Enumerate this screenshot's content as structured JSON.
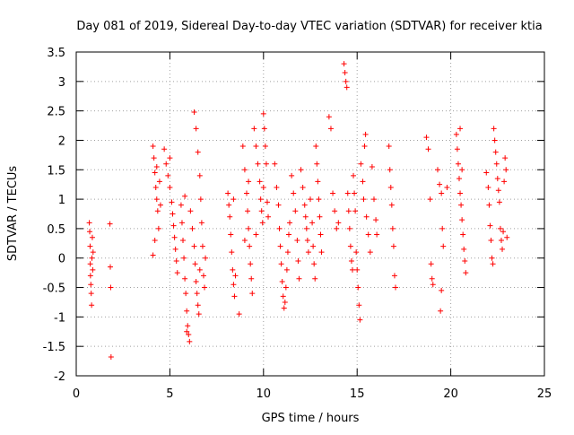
{
  "chart_data": {
    "type": "scatter",
    "title": "Day 081 of 2019, Sidereal Day-to-day VTEC variation (SDTVAR) for receiver ktia",
    "xlabel": "GPS time / hours",
    "ylabel": "SDTVAR / TECUs",
    "xlim": [
      0,
      25
    ],
    "ylim": [
      -2,
      3.5
    ],
    "xticks": [
      0,
      5,
      10,
      15,
      20,
      25
    ],
    "yticks": [
      -2,
      -1.5,
      -1,
      -0.5,
      0,
      0.5,
      1,
      1.5,
      2,
      2.5,
      3,
      3.5
    ],
    "grid": true,
    "marker": "plus",
    "color": "#ff0000",
    "series": [
      {
        "name": "SDTVAR",
        "points": [
          [
            0.7,
            0.6
          ],
          [
            0.72,
            0.45
          ],
          [
            0.74,
            0.2
          ],
          [
            0.75,
            -0.1
          ],
          [
            0.76,
            -0.3
          ],
          [
            0.78,
            -0.45
          ],
          [
            0.8,
            -0.6
          ],
          [
            0.82,
            -0.8
          ],
          [
            0.84,
            0.0
          ],
          [
            0.86,
            0.35
          ],
          [
            0.88,
            -0.2
          ],
          [
            0.9,
            0.1
          ],
          [
            1.8,
            0.58
          ],
          [
            1.82,
            -0.15
          ],
          [
            1.84,
            -0.5
          ],
          [
            1.86,
            -1.68
          ],
          [
            4.1,
            1.9
          ],
          [
            4.15,
            1.7
          ],
          [
            4.2,
            1.45
          ],
          [
            4.25,
            1.2
          ],
          [
            4.3,
            1.0
          ],
          [
            4.35,
            0.8
          ],
          [
            4.4,
            0.5
          ],
          [
            4.2,
            0.3
          ],
          [
            4.1,
            0.05
          ],
          [
            4.3,
            1.55
          ],
          [
            4.45,
            1.3
          ],
          [
            4.5,
            0.9
          ],
          [
            4.7,
            1.85
          ],
          [
            4.8,
            1.6
          ],
          [
            4.9,
            1.4
          ],
          [
            5.0,
            1.2
          ],
          [
            5.1,
            0.95
          ],
          [
            5.15,
            0.75
          ],
          [
            5.2,
            0.55
          ],
          [
            5.25,
            0.35
          ],
          [
            5.3,
            0.15
          ],
          [
            5.35,
            -0.05
          ],
          [
            5.4,
            -0.25
          ],
          [
            5.0,
            1.7
          ],
          [
            5.6,
            0.9
          ],
          [
            5.65,
            0.6
          ],
          [
            5.7,
            0.3
          ],
          [
            5.75,
            0.0
          ],
          [
            5.8,
            -0.35
          ],
          [
            5.85,
            -0.6
          ],
          [
            5.9,
            -0.9
          ],
          [
            5.95,
            -1.15
          ],
          [
            6.0,
            -1.3
          ],
          [
            6.05,
            -1.42
          ],
          [
            5.9,
            -1.25
          ],
          [
            5.8,
            1.05
          ],
          [
            6.1,
            0.8
          ],
          [
            6.2,
            0.5
          ],
          [
            6.3,
            0.2
          ],
          [
            6.35,
            -0.1
          ],
          [
            6.4,
            -0.4
          ],
          [
            6.45,
            -0.6
          ],
          [
            6.5,
            -0.8
          ],
          [
            6.55,
            -0.95
          ],
          [
            6.3,
            2.48
          ],
          [
            6.4,
            2.2
          ],
          [
            6.5,
            1.8
          ],
          [
            6.6,
            1.4
          ],
          [
            6.65,
            1.0
          ],
          [
            6.7,
            0.6
          ],
          [
            6.75,
            0.2
          ],
          [
            6.8,
            -0.3
          ],
          [
            6.85,
            -0.5
          ],
          [
            6.6,
            -0.2
          ],
          [
            6.9,
            0.0
          ],
          [
            8.1,
            1.1
          ],
          [
            8.15,
            0.9
          ],
          [
            8.2,
            0.7
          ],
          [
            8.25,
            0.4
          ],
          [
            8.3,
            0.1
          ],
          [
            8.35,
            -0.2
          ],
          [
            8.4,
            -0.45
          ],
          [
            8.45,
            -0.65
          ],
          [
            8.5,
            -0.3
          ],
          [
            8.4,
            1.0
          ],
          [
            8.7,
            -0.95
          ],
          [
            8.9,
            1.9
          ],
          [
            9.0,
            1.5
          ],
          [
            9.1,
            1.1
          ],
          [
            9.15,
            0.8
          ],
          [
            9.2,
            0.5
          ],
          [
            9.25,
            0.2
          ],
          [
            9.3,
            -0.1
          ],
          [
            9.35,
            -0.35
          ],
          [
            9.4,
            -0.6
          ],
          [
            9.2,
            1.3
          ],
          [
            9.0,
            0.3
          ],
          [
            9.5,
            2.2
          ],
          [
            9.6,
            1.9
          ],
          [
            9.7,
            1.6
          ],
          [
            9.8,
            1.3
          ],
          [
            9.85,
            1.0
          ],
          [
            9.9,
            0.8
          ],
          [
            9.95,
            0.6
          ],
          [
            10.0,
            2.45
          ],
          [
            10.05,
            2.2
          ],
          [
            10.1,
            1.9
          ],
          [
            10.15,
            1.6
          ],
          [
            10.2,
            0.95
          ],
          [
            10.25,
            0.7
          ],
          [
            9.6,
            0.4
          ],
          [
            10.0,
            1.2
          ],
          [
            10.6,
            1.6
          ],
          [
            10.7,
            1.2
          ],
          [
            10.8,
            0.9
          ],
          [
            10.85,
            0.5
          ],
          [
            10.9,
            0.2
          ],
          [
            10.95,
            -0.1
          ],
          [
            11.0,
            -0.4
          ],
          [
            11.05,
            -0.65
          ],
          [
            11.1,
            -0.85
          ],
          [
            11.15,
            -0.75
          ],
          [
            11.2,
            -0.5
          ],
          [
            11.25,
            -0.2
          ],
          [
            11.3,
            0.1
          ],
          [
            11.35,
            0.4
          ],
          [
            11.4,
            0.6
          ],
          [
            11.5,
            1.4
          ],
          [
            11.6,
            1.1
          ],
          [
            11.7,
            0.8
          ],
          [
            11.8,
            0.3
          ],
          [
            11.85,
            -0.05
          ],
          [
            11.9,
            -0.35
          ],
          [
            12.0,
            1.5
          ],
          [
            12.1,
            1.2
          ],
          [
            12.2,
            0.9
          ],
          [
            12.25,
            0.7
          ],
          [
            12.3,
            0.5
          ],
          [
            12.35,
            0.3
          ],
          [
            12.4,
            0.1
          ],
          [
            12.5,
            1.0
          ],
          [
            12.6,
            0.6
          ],
          [
            12.65,
            0.2
          ],
          [
            12.7,
            -0.1
          ],
          [
            12.75,
            -0.35
          ],
          [
            12.8,
            1.9
          ],
          [
            12.85,
            1.6
          ],
          [
            12.9,
            1.3
          ],
          [
            12.95,
            1.0
          ],
          [
            13.0,
            0.7
          ],
          [
            13.05,
            0.4
          ],
          [
            13.1,
            0.1
          ],
          [
            13.5,
            2.4
          ],
          [
            13.6,
            2.2
          ],
          [
            13.7,
            1.1
          ],
          [
            13.8,
            0.8
          ],
          [
            13.9,
            0.5
          ],
          [
            14.0,
            0.6
          ],
          [
            14.3,
            3.3
          ],
          [
            14.35,
            3.15
          ],
          [
            14.4,
            3.0
          ],
          [
            14.45,
            2.9
          ],
          [
            14.5,
            1.1
          ],
          [
            14.55,
            0.8
          ],
          [
            14.6,
            0.5
          ],
          [
            14.65,
            0.2
          ],
          [
            14.7,
            -0.05
          ],
          [
            14.75,
            -0.2
          ],
          [
            14.8,
            1.4
          ],
          [
            14.85,
            1.1
          ],
          [
            14.9,
            0.8
          ],
          [
            14.95,
            0.1
          ],
          [
            15.0,
            -0.2
          ],
          [
            15.05,
            -0.5
          ],
          [
            15.1,
            -0.8
          ],
          [
            15.15,
            -1.05
          ],
          [
            15.2,
            1.6
          ],
          [
            15.3,
            1.3
          ],
          [
            15.35,
            1.0
          ],
          [
            15.4,
            1.9
          ],
          [
            15.45,
            2.1
          ],
          [
            15.5,
            0.7
          ],
          [
            15.6,
            0.4
          ],
          [
            15.7,
            0.1
          ],
          [
            15.8,
            1.55
          ],
          [
            15.9,
            1.0
          ],
          [
            16.0,
            0.65
          ],
          [
            16.05,
            0.4
          ],
          [
            16.7,
            1.9
          ],
          [
            16.75,
            1.5
          ],
          [
            16.8,
            1.2
          ],
          [
            16.85,
            0.9
          ],
          [
            16.9,
            0.5
          ],
          [
            16.95,
            0.2
          ],
          [
            17.0,
            -0.3
          ],
          [
            17.05,
            -0.5
          ],
          [
            18.7,
            2.05
          ],
          [
            18.8,
            1.85
          ],
          [
            18.9,
            1.0
          ],
          [
            18.95,
            -0.1
          ],
          [
            19.0,
            -0.35
          ],
          [
            19.05,
            -0.45
          ],
          [
            19.3,
            1.5
          ],
          [
            19.4,
            1.25
          ],
          [
            19.5,
            1.1
          ],
          [
            19.55,
            0.5
          ],
          [
            19.6,
            0.2
          ],
          [
            19.5,
            -0.55
          ],
          [
            19.45,
            -0.9
          ],
          [
            19.8,
            1.2
          ],
          [
            20.3,
            2.1
          ],
          [
            20.35,
            1.85
          ],
          [
            20.4,
            1.6
          ],
          [
            20.45,
            1.35
          ],
          [
            20.5,
            1.1
          ],
          [
            20.55,
            0.9
          ],
          [
            20.6,
            0.65
          ],
          [
            20.65,
            0.4
          ],
          [
            20.7,
            0.15
          ],
          [
            20.75,
            -0.05
          ],
          [
            20.8,
            -0.25
          ],
          [
            20.5,
            2.2
          ],
          [
            20.6,
            1.5
          ],
          [
            21.9,
            1.45
          ],
          [
            22.0,
            1.2
          ],
          [
            22.05,
            0.9
          ],
          [
            22.1,
            0.55
          ],
          [
            22.15,
            0.3
          ],
          [
            22.2,
            0.0
          ],
          [
            22.25,
            -0.1
          ],
          [
            22.3,
            2.2
          ],
          [
            22.35,
            2.0
          ],
          [
            22.4,
            1.8
          ],
          [
            22.45,
            1.6
          ],
          [
            22.5,
            1.35
          ],
          [
            22.55,
            1.15
          ],
          [
            22.6,
            0.95
          ],
          [
            22.65,
            0.5
          ],
          [
            22.7,
            0.3
          ],
          [
            22.75,
            0.15
          ],
          [
            22.8,
            0.45
          ],
          [
            22.85,
            1.3
          ],
          [
            22.9,
            1.7
          ],
          [
            22.95,
            1.5
          ],
          [
            23.0,
            0.35
          ]
        ]
      }
    ]
  }
}
